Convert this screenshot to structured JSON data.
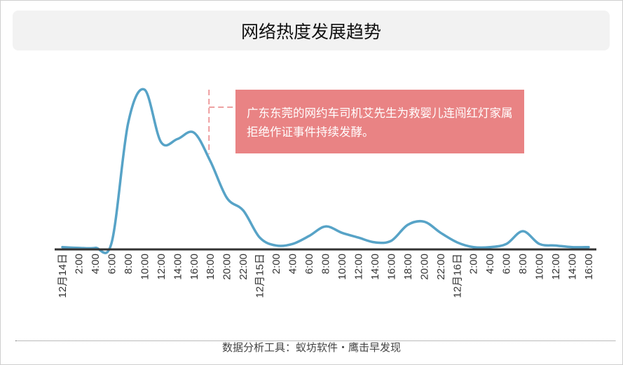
{
  "chart_data": {
    "type": "line",
    "title": "网络热度发展趋势",
    "xlabel": "",
    "ylabel": "",
    "grid": false,
    "y_axis_visible": false,
    "ylim": [
      0,
      100
    ],
    "line_color": "#57a3c7",
    "categories": [
      "12月14日",
      "2:00",
      "4:00",
      "6:00",
      "8:00",
      "10:00",
      "12:00",
      "14:00",
      "16:00",
      "18:00",
      "20:00",
      "22:00",
      "12月15日",
      "2:00",
      "4:00",
      "6:00",
      "8:00",
      "10:00",
      "12:00",
      "14:00",
      "16:00",
      "18:00",
      "20:00",
      "22:00",
      "12月16日",
      "2:00",
      "4:00",
      "6:00",
      "8:00",
      "10:00",
      "12:00",
      "14:00",
      "16:00"
    ],
    "values": [
      1,
      0.5,
      0.5,
      4,
      79,
      100,
      67,
      69,
      73,
      55,
      32,
      24,
      7,
      2,
      3,
      8,
      14,
      10,
      7,
      4,
      5,
      15,
      17,
      10,
      4,
      1,
      1,
      3,
      11,
      3,
      2,
      1,
      1
    ],
    "annotation": {
      "at_category_index": 9,
      "text": "广东东莞的网约车司机艾先生为救婴儿连闯红灯家属拒绝作证事件持续发酵。",
      "color": "#e98384"
    }
  },
  "footer": "数据分析工具：蚁坊软件・鹰击早发现"
}
